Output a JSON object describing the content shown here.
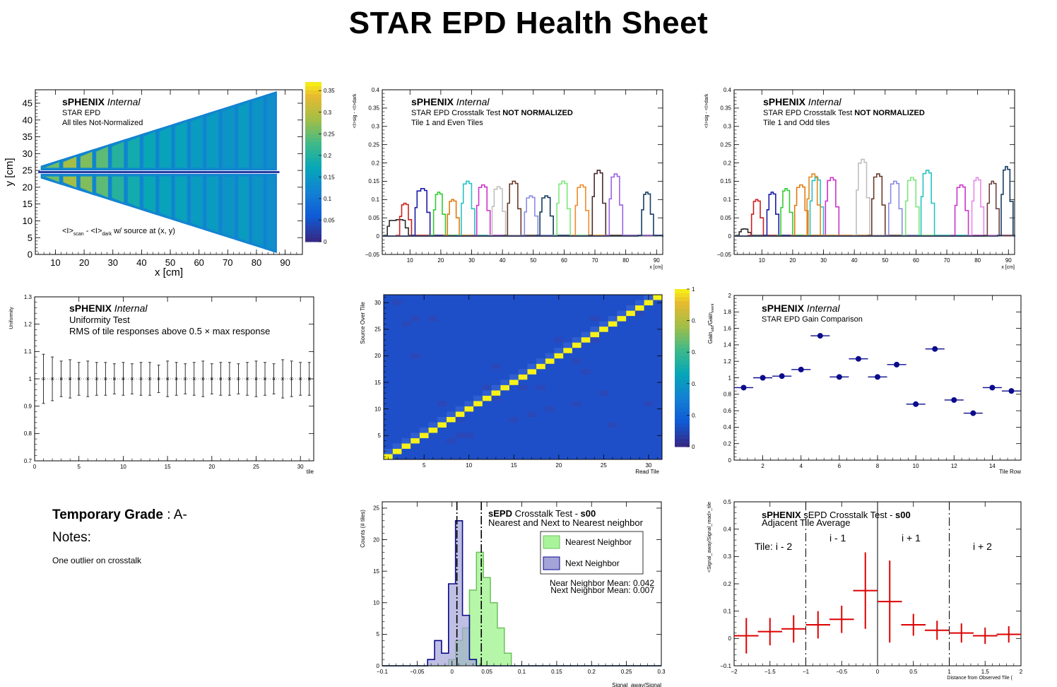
{
  "page": {
    "title": "STAR EPD Health Sheet"
  },
  "notes": {
    "grade_label": "Temporary Grade",
    "grade_value": ": A-",
    "notes_label": "Notes:",
    "notes_text": "One outlier on crosstalk"
  },
  "colors": {
    "frame": "#000000",
    "heat_low": "#1f4fc8",
    "heat_high": "#f7f21a",
    "gain_marker": "#0b0b8c",
    "adjacent_marker": "#dd0000",
    "nearest_fill": "#a9f49a",
    "next_fill": "#a4a4d8",
    "next_line": "#0a0a8c",
    "uniformity_marker": "#1a1ab0"
  },
  "chart_data": [
    {
      "id": "tile-map",
      "type": "heatmap",
      "labels": {
        "brand": "sPHENIX",
        "status": "Internal",
        "line1": "STAR EPD",
        "line2": "All tiles Not-Normalized",
        "formula_a": "<I>",
        "sub_a": "scan",
        "formula_mid": " - <I>",
        "sub_b": "dark",
        "formula_tail": " w/ source at (x, y)"
      },
      "xlabel": "x [cm]",
      "ylabel": "y [cm]",
      "xlim": [
        3,
        96
      ],
      "ylim": [
        0,
        49
      ],
      "xticks": [
        10,
        20,
        30,
        40,
        50,
        60,
        70,
        80,
        90
      ],
      "yticks": [
        0,
        5,
        10,
        15,
        20,
        25,
        30,
        35,
        40,
        45
      ],
      "zlim": [
        0,
        0.37
      ],
      "zticks": [
        0,
        0.05,
        0.1,
        0.15,
        0.2,
        0.25,
        0.3,
        0.35
      ],
      "tile_bounds_x": [
        5,
        12,
        18,
        23.5,
        29,
        34.5,
        40,
        45.5,
        51,
        56.5,
        62,
        67.5,
        73,
        78,
        83,
        87
      ],
      "tile_mean_response": [
        0.25,
        0.28,
        0.26,
        0.24,
        0.2,
        0.18,
        0.17,
        0.16,
        0.16,
        0.15,
        0.15,
        0.14,
        0.15,
        0.14,
        0.13
      ]
    },
    {
      "id": "crosstalk-even",
      "type": "line",
      "labels": {
        "brand": "sPHENIX",
        "status": "Internal",
        "line1_a": "STAR EPD Crosstalk Test ",
        "line1_b": "NOT NORMALIZED",
        "line2": "Tile 1 and Even Tiles"
      },
      "xlabel": "x [cm]",
      "ylabel": "<I>sig - <I>dark",
      "xlim": [
        1,
        92
      ],
      "ylim": [
        -0.05,
        0.4
      ],
      "xticks": [
        10,
        20,
        30,
        40,
        50,
        60,
        70,
        80,
        90
      ],
      "yticks": [
        -0.05,
        0,
        0.05,
        0.1,
        0.15,
        0.2,
        0.25,
        0.3,
        0.35,
        0.4
      ],
      "series": [
        {
          "color": "#2b2b2b",
          "x_start": 2,
          "x_end": 9,
          "peak": 0.045
        },
        {
          "color": "#cc1f1f",
          "x_start": 6,
          "x_end": 10,
          "peak": 0.09
        },
        {
          "color": "#1a1aa8",
          "x_start": 11,
          "x_end": 16,
          "peak": 0.13
        },
        {
          "color": "#33cc33",
          "x_start": 17,
          "x_end": 21,
          "peak": 0.12
        },
        {
          "color": "#e07a10",
          "x_start": 21.5,
          "x_end": 25.5,
          "peak": 0.1
        },
        {
          "color": "#26c2c2",
          "x_start": 26,
          "x_end": 30.5,
          "peak": 0.15
        },
        {
          "color": "#cc33cc",
          "x_start": 31,
          "x_end": 35.5,
          "peak": 0.14
        },
        {
          "color": "#bfbfbf",
          "x_start": 36,
          "x_end": 40.5,
          "peak": 0.135
        },
        {
          "color": "#6b3a2a",
          "x_start": 41,
          "x_end": 45.5,
          "peak": 0.15
        },
        {
          "color": "#8a8ae6",
          "x_start": 46.5,
          "x_end": 51,
          "peak": 0.11
        },
        {
          "color": "#133b5c",
          "x_start": 51.5,
          "x_end": 56,
          "peak": 0.11
        },
        {
          "color": "#7be87b",
          "x_start": 57,
          "x_end": 61.5,
          "peak": 0.15
        },
        {
          "color": "#ef8a2a",
          "x_start": 63,
          "x_end": 67.5,
          "peak": 0.14
        },
        {
          "color": "#4b2a2a",
          "x_start": 68.5,
          "x_end": 73,
          "peak": 0.18
        },
        {
          "color": "#9a64e6",
          "x_start": 74,
          "x_end": 78.5,
          "peak": 0.17
        },
        {
          "color": "#163e64",
          "x_start": 84.5,
          "x_end": 88.5,
          "peak": 0.12
        }
      ]
    },
    {
      "id": "crosstalk-odd",
      "type": "line",
      "labels": {
        "brand": "sPHENIX",
        "status": "Internal",
        "line1_a": "STAR EPD Crosstalk Test ",
        "line1_b": "NOT NORMALIZED",
        "line2": "Tile 1 and Odd tiles"
      },
      "xlabel": "x [cm]",
      "ylabel": "<I>sig - <I>dark",
      "xlim": [
        1,
        92
      ],
      "ylim": [
        -0.05,
        0.4
      ],
      "xticks": [
        10,
        20,
        30,
        40,
        50,
        60,
        70,
        80,
        90
      ],
      "yticks": [
        -0.05,
        0,
        0.05,
        0.1,
        0.15,
        0.2,
        0.25,
        0.3,
        0.35,
        0.4
      ],
      "series": [
        {
          "color": "#2b2b2b",
          "x_start": 2,
          "x_end": 6,
          "peak": 0.02
        },
        {
          "color": "#cc1f1f",
          "x_start": 6,
          "x_end": 10,
          "peak": 0.1
        },
        {
          "color": "#1a1aa8",
          "x_start": 11,
          "x_end": 15,
          "peak": 0.12
        },
        {
          "color": "#33cc33",
          "x_start": 15.5,
          "x_end": 19.5,
          "peak": 0.13
        },
        {
          "color": "#e07a10",
          "x_start": 20,
          "x_end": 24.5,
          "peak": 0.14
        },
        {
          "color": "#26c2c2",
          "x_start": 25,
          "x_end": 29.5,
          "peak": 0.16
        },
        {
          "color": "#cc33cc",
          "x_start": 30,
          "x_end": 34.5,
          "peak": 0.16
        },
        {
          "color": "#e08a20",
          "x_start": 24,
          "x_end": 28.5,
          "peak": 0.17
        },
        {
          "color": "#bfbfbf",
          "x_start": 40,
          "x_end": 44.5,
          "peak": 0.21
        },
        {
          "color": "#6b3a2a",
          "x_start": 45,
          "x_end": 49.5,
          "peak": 0.17
        },
        {
          "color": "#8a8ae6",
          "x_start": 50.5,
          "x_end": 55,
          "peak": 0.15
        },
        {
          "color": "#7be87b",
          "x_start": 56,
          "x_end": 60.5,
          "peak": 0.16
        },
        {
          "color": "#26c2c2",
          "x_start": 61,
          "x_end": 65.5,
          "peak": 0.18
        },
        {
          "color": "#cc33cc",
          "x_start": 72,
          "x_end": 76.5,
          "peak": 0.14
        },
        {
          "color": "#e889e8",
          "x_start": 77.5,
          "x_end": 81.5,
          "peak": 0.16
        },
        {
          "color": "#6b4242",
          "x_start": 82.5,
          "x_end": 86.5,
          "peak": 0.15
        },
        {
          "color": "#163e64",
          "x_start": 87,
          "x_end": 91,
          "peak": 0.19
        }
      ]
    },
    {
      "id": "uniformity",
      "type": "scatter",
      "labels": {
        "brand": "sPHENIX",
        "status": "Internal",
        "line1": "Uniformity Test",
        "line2": "RMS of tile responses above 0.5 × max response"
      },
      "xlabel": "tile",
      "ylabel": "Uniformity",
      "xlim": [
        0,
        31.5
      ],
      "ylim": [
        0.7,
        1.3
      ],
      "xticks": [
        0,
        5,
        10,
        15,
        20,
        25,
        30
      ],
      "yticks": [
        0.7,
        0.8,
        0.9,
        1,
        1.1,
        1.2,
        1.3
      ],
      "points": [
        {
          "x": 1,
          "y": 1,
          "err": 0.09
        },
        {
          "x": 2,
          "y": 1,
          "err": 0.08
        },
        {
          "x": 3,
          "y": 1,
          "err": 0.065
        },
        {
          "x": 4,
          "y": 1,
          "err": 0.07
        },
        {
          "x": 5,
          "y": 1,
          "err": 0.06
        },
        {
          "x": 6,
          "y": 1,
          "err": 0.065
        },
        {
          "x": 7,
          "y": 1,
          "err": 0.06
        },
        {
          "x": 8,
          "y": 1,
          "err": 0.06
        },
        {
          "x": 9,
          "y": 1,
          "err": 0.055
        },
        {
          "x": 10,
          "y": 1,
          "err": 0.06
        },
        {
          "x": 11,
          "y": 1,
          "err": 0.055
        },
        {
          "x": 12,
          "y": 1,
          "err": 0.06
        },
        {
          "x": 13,
          "y": 1,
          "err": 0.06
        },
        {
          "x": 14,
          "y": 1,
          "err": 0.05
        },
        {
          "x": 15,
          "y": 1,
          "err": 0.065
        },
        {
          "x": 16,
          "y": 1,
          "err": 0.06
        },
        {
          "x": 17,
          "y": 1,
          "err": 0.055
        },
        {
          "x": 18,
          "y": 1,
          "err": 0.06
        },
        {
          "x": 19,
          "y": 1,
          "err": 0.065
        },
        {
          "x": 20,
          "y": 1,
          "err": 0.055
        },
        {
          "x": 21,
          "y": 1,
          "err": 0.06
        },
        {
          "x": 22,
          "y": 1,
          "err": 0.06
        },
        {
          "x": 23,
          "y": 1,
          "err": 0.055
        },
        {
          "x": 24,
          "y": 1,
          "err": 0.06
        },
        {
          "x": 25,
          "y": 1,
          "err": 0.065
        },
        {
          "x": 26,
          "y": 1,
          "err": 0.06
        },
        {
          "x": 27,
          "y": 1,
          "err": 0.055
        },
        {
          "x": 28,
          "y": 1,
          "err": 0.07
        },
        {
          "x": 29,
          "y": 1,
          "err": 0.065
        },
        {
          "x": 30,
          "y": 1,
          "err": 0.06
        },
        {
          "x": 31,
          "y": 1,
          "err": 0.06
        }
      ]
    },
    {
      "id": "crosstalk-matrix",
      "type": "heatmap",
      "xlabel": "Read Tile",
      "ylabel": "Source Over Tile",
      "xlim": [
        0.5,
        31.5
      ],
      "ylim": [
        0.5,
        31.5
      ],
      "xticks": [
        5,
        10,
        15,
        20,
        25,
        30
      ],
      "yticks": [
        5,
        10,
        15,
        20,
        25,
        30
      ],
      "zlim": [
        0,
        1
      ],
      "zticks": [
        0,
        0.2,
        0.4,
        0.6,
        0.8,
        1
      ],
      "zticklabels": [
        "0",
        "0.",
        "0.",
        "0.",
        "0.",
        "1"
      ],
      "diagonal_value": 1,
      "offdiag_cells": [
        {
          "x": 2,
          "y": 30,
          "v": 0.06
        },
        {
          "x": 3,
          "y": 26,
          "v": 0.05
        },
        {
          "x": 4,
          "y": 27,
          "v": 0.06
        },
        {
          "x": 6,
          "y": 27,
          "v": 0.05
        },
        {
          "x": 13,
          "y": 18,
          "v": 0.05
        },
        {
          "x": 28,
          "y": 29,
          "v": 0.06
        },
        {
          "x": 29,
          "y": 28,
          "v": 0.05
        },
        {
          "x": 24,
          "y": 27,
          "v": 0.05
        },
        {
          "x": 9,
          "y": 8,
          "v": 0.05
        },
        {
          "x": 24,
          "y": 23,
          "v": 0.04
        },
        {
          "x": 17,
          "y": 9,
          "v": 0.05
        },
        {
          "x": 18,
          "y": 14,
          "v": 0.04
        },
        {
          "x": 26,
          "y": 7,
          "v": 0.04
        },
        {
          "x": 13,
          "y": 12,
          "v": 0.04
        },
        {
          "x": 8,
          "y": 4,
          "v": 0.05
        },
        {
          "x": 19,
          "y": 10,
          "v": 0.04
        },
        {
          "x": 23,
          "y": 17,
          "v": 0.05
        },
        {
          "x": 25,
          "y": 13,
          "v": 0.04
        },
        {
          "x": 9,
          "y": 5,
          "v": 0.05
        },
        {
          "x": 10,
          "y": 5,
          "v": 0.04
        },
        {
          "x": 16,
          "y": 14,
          "v": 0.04
        },
        {
          "x": 21,
          "y": 21,
          "v": 0.03
        },
        {
          "x": 20,
          "y": 23,
          "v": 0.04
        },
        {
          "x": 15,
          "y": 8,
          "v": 0.04
        },
        {
          "x": 12,
          "y": 14,
          "v": 0.04
        },
        {
          "x": 30,
          "y": 11,
          "v": 0.04
        },
        {
          "x": 7,
          "y": 11,
          "v": 0.04
        },
        {
          "x": 4,
          "y": 20,
          "v": 0.04
        },
        {
          "x": 22,
          "y": 11,
          "v": 0.04
        },
        {
          "x": 22,
          "y": 19,
          "v": 0.05
        }
      ]
    },
    {
      "id": "gain-comparison",
      "type": "scatter",
      "labels": {
        "brand": "sPHENIX",
        "status": "Internal",
        "line1": "STAR EPD Gain Comparison"
      },
      "xlabel": "Tile Row",
      "ylabel": "Gain_odd / Gain_event",
      "xlim": [
        0.5,
        15.5
      ],
      "ylim": [
        0,
        2
      ],
      "xticks": [
        2,
        4,
        6,
        8,
        10,
        12,
        14
      ],
      "yticks": [
        0,
        0.2,
        0.4,
        0.6,
        0.8,
        1,
        1.2,
        1.4,
        1.6,
        1.8,
        2
      ],
      "points": [
        {
          "x": 1,
          "y": 0.88
        },
        {
          "x": 2,
          "y": 1.0
        },
        {
          "x": 3,
          "y": 1.02
        },
        {
          "x": 4,
          "y": 1.1
        },
        {
          "x": 5,
          "y": 1.51
        },
        {
          "x": 6,
          "y": 1.01
        },
        {
          "x": 7,
          "y": 1.23
        },
        {
          "x": 8,
          "y": 1.01
        },
        {
          "x": 9,
          "y": 1.16
        },
        {
          "x": 10,
          "y": 0.68
        },
        {
          "x": 11,
          "y": 1.35
        },
        {
          "x": 12,
          "y": 0.73
        },
        {
          "x": 13,
          "y": 0.57
        },
        {
          "x": 14,
          "y": 0.88
        },
        {
          "x": 15,
          "y": 0.84
        }
      ]
    },
    {
      "id": "neighbor-histogram",
      "type": "bar",
      "labels": {
        "title_a": "sEPD",
        "title_b": " Crosstalk Test - ",
        "title_c": "s00",
        "subtitle": "Nearest and Next to Nearest neighbor",
        "mean_near": "Near Neighbor Mean: 0.042",
        "mean_next": "Next Neighbor Mean: 0.007"
      },
      "xlabel": "Signal_away/Signal",
      "ylabel": "Counts (# tiles)",
      "xlim": [
        -0.1,
        0.3
      ],
      "ylim": [
        0,
        26
      ],
      "xticks": [
        -0.1,
        -0.05,
        0,
        0.05,
        0.1,
        0.15,
        0.2,
        0.25,
        0.3
      ],
      "xticklabels": [
        "−0.1",
        "−0.05",
        "0",
        "0.05",
        "0.1",
        "0.15",
        "0.2",
        "0.25",
        "0.3"
      ],
      "yticks": [
        0,
        5,
        10,
        15,
        20,
        25
      ],
      "bin_edges": [
        -0.035,
        -0.025,
        -0.015,
        -0.005,
        0.005,
        0.015,
        0.025,
        0.035,
        0.045,
        0.055,
        0.065,
        0.075,
        0.085
      ],
      "series": [
        {
          "name": "Nearest Neighbor",
          "counts": [
            0,
            0,
            0,
            1,
            4,
            6,
            12,
            18,
            14,
            10,
            6,
            2
          ]
        },
        {
          "name": "Next Neighbor",
          "counts": [
            1,
            4,
            2,
            13,
            23,
            8,
            1,
            0,
            0,
            0,
            0,
            0
          ]
        }
      ],
      "means": {
        "nearest": 0.042,
        "next": 0.007
      },
      "legend_position": "top-right"
    },
    {
      "id": "adjacent-average",
      "type": "scatter",
      "labels": {
        "brand": "sPHENIX",
        "title_rest": " sEPD Crosstalk Test - ",
        "title_run": "s00",
        "subtitle": "Adjacent Tile Average",
        "region1": "Tile: i - 2",
        "region2": "i - 1",
        "region3": "i + 1",
        "region4": "i + 2"
      },
      "xlabel": "Distance from Observed Tile (",
      "ylabel": "<Signal_away/Signal_read>_tile",
      "xlim": [
        -2,
        2
      ],
      "ylim": [
        -0.1,
        0.5
      ],
      "xticks": [
        -2,
        -1.5,
        -1,
        -0.5,
        0,
        0.5,
        1,
        1.5,
        2
      ],
      "xticklabels": [
        "−2",
        "−1.5",
        "−1",
        "−0.5",
        "0",
        "0.5",
        "1",
        "1.5",
        "2"
      ],
      "yticks": [
        -0.1,
        0,
        0.1,
        0.2,
        0.3,
        0.4,
        0.5
      ],
      "yticklabels": [
        "−0.1",
        "0",
        "0.1",
        "0.2",
        "0.3",
        "0.4",
        "0.5"
      ],
      "points": [
        {
          "x": -1.83,
          "y": 0.01,
          "ex": 0.17,
          "ey": 0.065
        },
        {
          "x": -1.5,
          "y": 0.025,
          "ex": 0.17,
          "ey": 0.05
        },
        {
          "x": -1.17,
          "y": 0.035,
          "ex": 0.17,
          "ey": 0.05
        },
        {
          "x": -0.83,
          "y": 0.05,
          "ex": 0.17,
          "ey": 0.05
        },
        {
          "x": -0.5,
          "y": 0.07,
          "ex": 0.17,
          "ey": 0.05
        },
        {
          "x": -0.17,
          "y": 0.175,
          "ex": 0.17,
          "ey": 0.14
        },
        {
          "x": 0.17,
          "y": 0.135,
          "ex": 0.17,
          "ey": 0.15
        },
        {
          "x": 0.5,
          "y": 0.05,
          "ex": 0.17,
          "ey": 0.04
        },
        {
          "x": 0.83,
          "y": 0.03,
          "ex": 0.17,
          "ey": 0.035
        },
        {
          "x": 1.17,
          "y": 0.02,
          "ex": 0.17,
          "ey": 0.035
        },
        {
          "x": 1.5,
          "y": 0.01,
          "ex": 0.17,
          "ey": 0.03
        },
        {
          "x": 1.83,
          "y": 0.015,
          "ex": 0.17,
          "ey": 0.03
        }
      ],
      "dividers": [
        -1,
        0,
        1
      ]
    }
  ]
}
